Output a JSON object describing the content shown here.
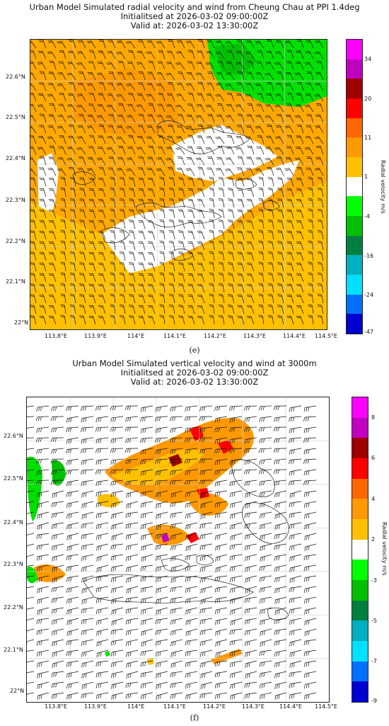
{
  "panel_e": {
    "title_line1": "Urban Model Simulated radial velocity and wind from Cheung Chau at PPI 1.4deg",
    "title_line2": "Initialitsed at 2026-03-02 09:00:00Z",
    "title_line3": "Valid at: 2026-03-02 13:30:00Z",
    "x_ticks": [
      "113.8°E",
      "113.9°E",
      "114°E",
      "114.1°E",
      "114.2°E",
      "114.3°E",
      "114.4°E",
      "114.5°E"
    ],
    "y_ticks": [
      "22.6°N",
      "22.5°N",
      "22.4°N",
      "22.3°N",
      "22.2°N",
      "22.1°N",
      "22°N"
    ],
    "colorbar_label": "Radial velocity m/s",
    "colorbar_ticks": [
      "34",
      "20",
      "11",
      "1",
      "-4",
      "-16",
      "-24",
      "-47"
    ],
    "colorbar_colors": [
      "#ff00ff",
      "#c000c0",
      "#a00000",
      "#ff0000",
      "#ff6600",
      "#ff9900",
      "#ffc000",
      "#ffffff",
      "#00ff00",
      "#00c000",
      "#008040",
      "#00b0c0",
      "#00e0ff",
      "#0070ff",
      "#0000d0"
    ],
    "caption": "(e)"
  },
  "panel_f": {
    "title_line1": "Urban Model Simulated vertical velocity and wind at 3000m",
    "title_line2": "Initialitsed at 2026-03-02 09:00:00Z",
    "title_line3": "Valid at: 2026-03-02 13:30:00Z",
    "x_ticks": [
      "113.8°E",
      "113.9°E",
      "114°E",
      "114.1°E",
      "114.2°E",
      "114.3°E",
      "114.4°E",
      "114.5°E"
    ],
    "y_ticks": [
      "22.6°N",
      "22.5°N",
      "22.4°N",
      "22.3°N",
      "22.2°N",
      "22.1°N",
      "22°N"
    ],
    "colorbar_label": "Radial velocity m/s",
    "colorbar_ticks": [
      "8",
      "6",
      "4",
      "2",
      "-3",
      "-5",
      "-7",
      "-9"
    ],
    "colorbar_colors": [
      "#ff00ff",
      "#c000c0",
      "#a00000",
      "#ff0000",
      "#ff6600",
      "#ff9900",
      "#ffc000",
      "#ffffff",
      "#00ff00",
      "#00c000",
      "#008040",
      "#00b0c0",
      "#00e0ff",
      "#0070ff",
      "#0000d0"
    ],
    "caption": "(f)"
  }
}
